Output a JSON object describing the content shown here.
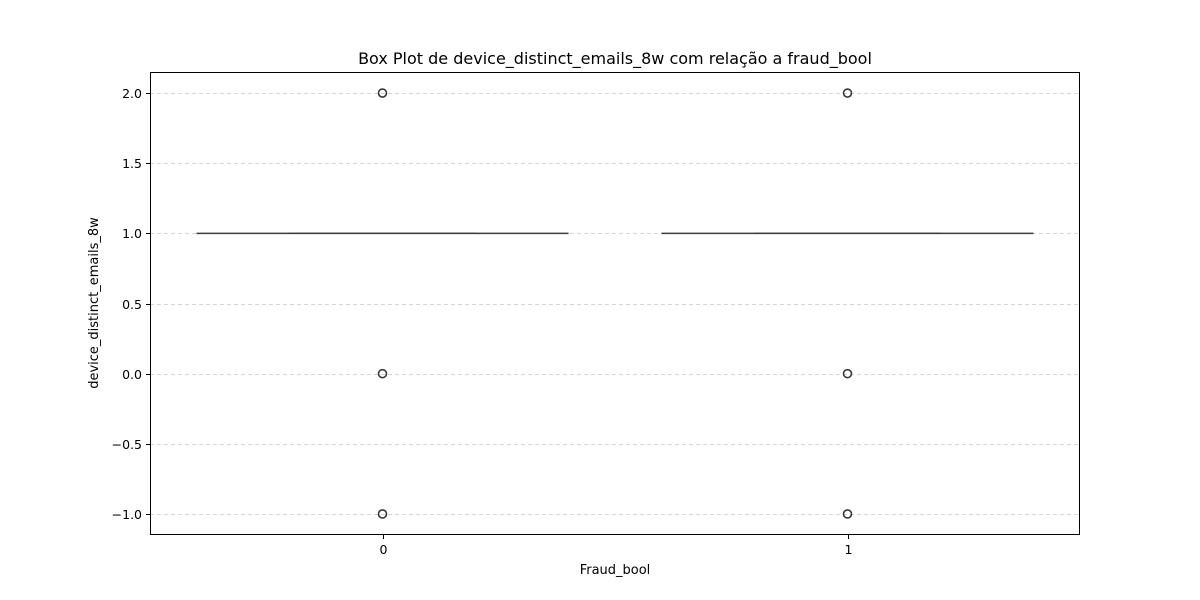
{
  "chart_data": {
    "type": "box",
    "title": "Box Plot de device_distinct_emails_8w com relação a fraud_bool",
    "xlabel": "Fraud_bool",
    "ylabel": "device_distinct_emails_8w",
    "categories": [
      "0",
      "1"
    ],
    "ylim": [
      -1.15,
      2.15
    ],
    "yticks": [
      -1.0,
      -0.5,
      0.0,
      0.5,
      1.0,
      1.5,
      2.0
    ],
    "ytick_labels": [
      "−1.0",
      "−0.5",
      "0.0",
      "0.5",
      "1.0",
      "1.5",
      "2.0"
    ],
    "grid": "y-dashed",
    "boxes": [
      {
        "category": "0",
        "min": 1.0,
        "q1": 1.0,
        "median": 1.0,
        "q3": 1.0,
        "max": 1.0,
        "outliers": [
          -1.0,
          0.0,
          2.0
        ]
      },
      {
        "category": "1",
        "min": 1.0,
        "q1": 1.0,
        "median": 1.0,
        "q3": 1.0,
        "max": 1.0,
        "outliers": [
          -1.0,
          0.0,
          2.0
        ]
      }
    ],
    "colors": {
      "box": "#3a3a3a",
      "grid": "#c8c8c8",
      "outlier": "#3a3a3a"
    }
  }
}
